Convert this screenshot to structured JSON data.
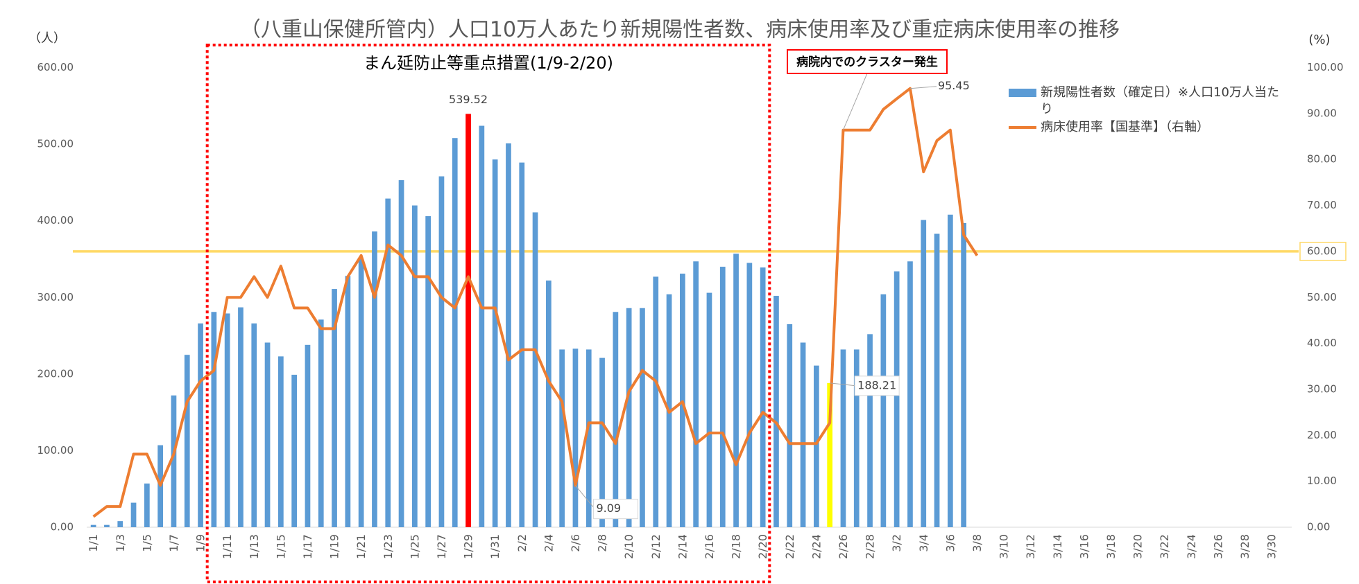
{
  "chart_data": {
    "type": "bar-line",
    "title": "（八重山保健所管内）人口10万人あたり新規陽性者数、病床使用率及び重症病床使用率の推移",
    "y_label": "（人）",
    "y2_label": "(%)",
    "categories": [
      "1/1",
      null,
      "1/3",
      null,
      "1/5",
      null,
      "1/7",
      null,
      "1/9",
      null,
      "1/11",
      null,
      "1/13",
      null,
      "1/15",
      null,
      "1/17",
      null,
      "1/19",
      null,
      "1/21",
      null,
      "1/23",
      null,
      "1/25",
      null,
      "1/27",
      null,
      "1/29",
      null,
      "1/31",
      null,
      "2/2",
      null,
      "2/4",
      null,
      "2/6",
      null,
      "2/8",
      null,
      "2/10",
      null,
      "2/12",
      null,
      "2/14",
      null,
      "2/16",
      null,
      "2/18",
      null,
      "2/20",
      null,
      "2/22",
      null,
      "2/24",
      null,
      "2/26",
      null,
      "2/28",
      null,
      "3/2",
      null,
      "3/4",
      null,
      "3/6",
      null,
      "3/8",
      null,
      "3/10",
      null,
      "3/12",
      null,
      "3/14",
      null,
      "3/16",
      null,
      "3/18",
      null,
      "3/20",
      null,
      "3/22",
      null,
      "3/24",
      null,
      "3/26",
      null,
      "3/28",
      null,
      "3/30",
      null
    ],
    "series": [
      {
        "name": "新規陽性者数（確定日）※人口10万人当たり",
        "type": "bar",
        "axis": "y",
        "color": "#5b9bd5",
        "highlights": [
          {
            "index": 28,
            "color": "#ff0000"
          },
          {
            "index": 55,
            "color": "#ffff00"
          }
        ],
        "values": [
          3,
          3,
          8,
          32,
          57,
          107,
          172,
          225,
          266,
          281,
          279,
          287,
          266,
          241,
          223,
          199,
          238,
          271,
          311,
          328,
          350,
          386,
          429,
          453,
          420,
          406,
          458,
          508,
          539.52,
          524,
          480,
          501,
          476,
          411,
          322,
          232,
          233,
          232,
          221,
          281,
          286,
          286,
          327,
          304,
          331,
          347,
          306,
          340,
          357,
          345,
          339,
          302,
          265,
          241,
          211,
          188.21,
          232,
          232,
          252,
          304,
          334,
          347,
          401,
          383,
          408,
          397,
          null,
          null,
          null,
          null,
          null,
          null,
          null,
          null,
          null,
          null,
          null,
          null,
          null,
          null,
          null,
          null,
          null,
          null,
          null,
          null,
          null,
          null,
          null,
          null
        ]
      },
      {
        "name": "病床使用率【国基準】（右軸）",
        "type": "line",
        "axis": "y2",
        "color": "#ed7d31",
        "values": [
          2.3,
          4.5,
          4.5,
          15.9,
          15.9,
          9.1,
          15.9,
          27.3,
          31.8,
          34.1,
          50,
          50,
          54.5,
          50,
          56.8,
          47.7,
          47.7,
          43.2,
          43.2,
          54.5,
          59.1,
          50,
          61.4,
          59.1,
          54.5,
          54.5,
          50,
          47.7,
          54.5,
          47.7,
          47.7,
          36.4,
          38.6,
          38.6,
          31.8,
          27.3,
          9.09,
          22.7,
          22.7,
          18.2,
          29.5,
          34.1,
          31.8,
          25,
          27.3,
          18.2,
          20.5,
          20.5,
          13.6,
          20.5,
          25,
          22.7,
          18.2,
          18.2,
          18.2,
          22.7,
          86.4,
          86.4,
          86.4,
          90.9,
          93.2,
          95.45,
          77.3,
          84.1,
          86.4,
          63.6,
          59.1,
          null,
          null,
          null,
          null,
          null,
          null,
          null,
          null,
          null,
          null,
          null,
          null,
          null,
          null,
          null,
          null,
          null,
          null,
          null,
          null,
          null,
          null,
          null
        ]
      }
    ],
    "data_labels": [
      {
        "series": 0,
        "index": 28
      },
      {
        "series": 0,
        "index": 55
      },
      {
        "series": 1,
        "index": 36
      },
      {
        "series": 1,
        "index": 61
      }
    ],
    "ylim": [
      0,
      600
    ],
    "yticks": [
      {
        "value": 0,
        "label": "0.00"
      },
      {
        "value": 100,
        "label": "100.00"
      },
      {
        "value": 200,
        "label": "200.00"
      },
      {
        "value": 300,
        "label": "300.00"
      },
      {
        "value": 400,
        "label": "400.00"
      },
      {
        "value": 500,
        "label": "500.00"
      },
      {
        "value": 600,
        "label": "600.00"
      }
    ],
    "y2lim": [
      0,
      100
    ],
    "y2ticks": [
      {
        "value": 0,
        "label": "0.00"
      },
      {
        "value": 10,
        "label": "10.00"
      },
      {
        "value": 20,
        "label": "20.00"
      },
      {
        "value": 30,
        "label": "30.00"
      },
      {
        "value": 40,
        "label": "40.00"
      },
      {
        "value": 50,
        "label": "50.00"
      },
      {
        "value": 60,
        "label": "60.00"
      },
      {
        "value": 70,
        "label": "70.00"
      },
      {
        "value": 80,
        "label": "80.00"
      },
      {
        "value": 90,
        "label": "90.00"
      },
      {
        "value": 100,
        "label": "100.00"
      }
    ],
    "reference_line": {
      "axis": "y2",
      "value": 60,
      "color": "#ffd966"
    },
    "period": {
      "label": "まん延防止等重点措置(1/9-2/20)",
      "from": 8,
      "to": 50,
      "color": "#ff0000"
    },
    "callout": {
      "text": "病院内でのクラスター発生",
      "series": 1,
      "index": 56,
      "color": "#ff0000"
    },
    "legend": "top-right",
    "grid": false
  }
}
